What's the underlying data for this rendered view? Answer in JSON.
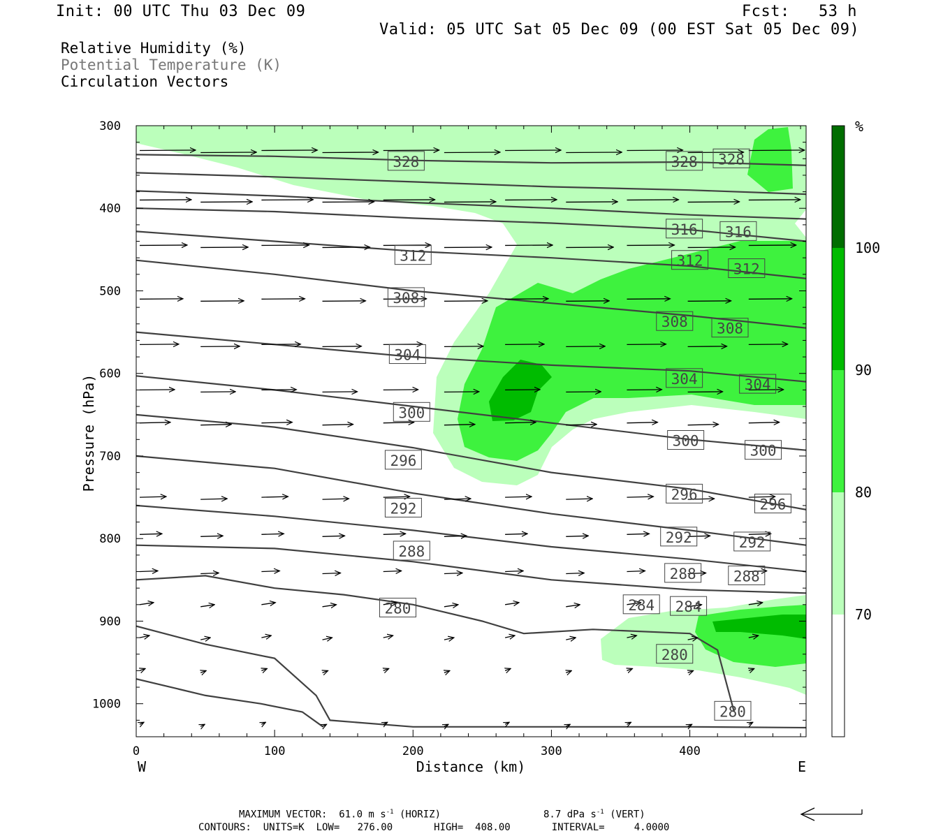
{
  "header": {
    "init": "Init: 00 UTC Thu 03 Dec 09",
    "fcst": "Fcst:   53 h",
    "valid": "Valid: 05 UTC Sat 05 Dec 09 (00 EST Sat 05 Dec 09)"
  },
  "legend": {
    "line1": "Relative Humidity (%)",
    "line2": "Potential Temperature (K)",
    "line3": "Circulation Vectors"
  },
  "colors": {
    "rh_70_80": "#bbffbb",
    "rh_80_90": "#3ef23e",
    "rh_90_100": "#00bb00",
    "rh_100": "#006d00",
    "contour": "#404040"
  },
  "chart_data": {
    "type": "contour-cross-section",
    "ylabel": "Pressure (hPa)",
    "xlabel": "Distance (km)",
    "xlim": [
      0,
      484
    ],
    "ylim": [
      1040,
      300
    ],
    "y_reversed": true,
    "x_ticks": [
      "0",
      "100",
      "200",
      "300",
      "400"
    ],
    "y_ticks": [
      "300",
      "400",
      "500",
      "600",
      "700",
      "800",
      "900",
      "1000"
    ],
    "x_end_labels": {
      "left": "W",
      "right": "E"
    },
    "colorbar": {
      "unit": "%",
      "levels": [
        "70",
        "80",
        "90",
        "100"
      ]
    },
    "rh_shading_levels": [
      70,
      80,
      90,
      100
    ],
    "theta_labels": [
      {
        "value": "328",
        "x": 195,
        "p": 343
      },
      {
        "value": "328",
        "x": 396,
        "p": 343
      },
      {
        "value": "328",
        "x": 430,
        "p": 340
      },
      {
        "value": "316",
        "x": 396,
        "p": 425
      },
      {
        "value": "316",
        "x": 435,
        "p": 428
      },
      {
        "value": "312",
        "x": 200,
        "p": 457
      },
      {
        "value": "312",
        "x": 400,
        "p": 463
      },
      {
        "value": "312",
        "x": 441,
        "p": 473
      },
      {
        "value": "308",
        "x": 195,
        "p": 508
      },
      {
        "value": "308",
        "x": 389,
        "p": 537
      },
      {
        "value": "308",
        "x": 429,
        "p": 545
      },
      {
        "value": "304",
        "x": 196,
        "p": 577
      },
      {
        "value": "304",
        "x": 396,
        "p": 606
      },
      {
        "value": "304",
        "x": 449,
        "p": 613
      },
      {
        "value": "300",
        "x": 199,
        "p": 647
      },
      {
        "value": "300",
        "x": 397,
        "p": 681
      },
      {
        "value": "300",
        "x": 453,
        "p": 693
      },
      {
        "value": "296",
        "x": 193,
        "p": 705
      },
      {
        "value": "296",
        "x": 396,
        "p": 746
      },
      {
        "value": "296",
        "x": 460,
        "p": 758
      },
      {
        "value": "292",
        "x": 193,
        "p": 763
      },
      {
        "value": "292",
        "x": 392,
        "p": 798
      },
      {
        "value": "292",
        "x": 445,
        "p": 804
      },
      {
        "value": "288",
        "x": 199,
        "p": 815
      },
      {
        "value": "288",
        "x": 395,
        "p": 842
      },
      {
        "value": "288",
        "x": 441,
        "p": 845
      },
      {
        "value": "284",
        "x": 365,
        "p": 880
      },
      {
        "value": "284",
        "x": 399,
        "p": 882
      },
      {
        "value": "280",
        "x": 189,
        "p": 884
      },
      {
        "value": "280",
        "x": 389,
        "p": 940
      },
      {
        "value": "280",
        "x": 431,
        "p": 1009
      }
    ],
    "theta_contours": [
      {
        "level": 328,
        "points": [
          [
            0,
            335
          ],
          [
            100,
            337
          ],
          [
            200,
            342
          ],
          [
            300,
            345
          ],
          [
            400,
            344
          ],
          [
            484,
            348
          ]
        ]
      },
      {
        "level": 324,
        "points": [
          [
            0,
            357
          ],
          [
            100,
            362
          ],
          [
            200,
            368
          ],
          [
            300,
            374
          ],
          [
            400,
            378
          ],
          [
            484,
            383
          ]
        ]
      },
      {
        "level": 320,
        "points": [
          [
            0,
            379
          ],
          [
            100,
            385
          ],
          [
            200,
            393
          ],
          [
            300,
            400
          ],
          [
            400,
            408
          ],
          [
            484,
            413
          ]
        ]
      },
      {
        "level": 316,
        "points": [
          [
            0,
            400
          ],
          [
            100,
            404
          ],
          [
            200,
            412
          ],
          [
            300,
            418
          ],
          [
            400,
            426
          ],
          [
            484,
            440
          ]
        ]
      },
      {
        "level": 312,
        "points": [
          [
            0,
            428
          ],
          [
            100,
            440
          ],
          [
            200,
            452
          ],
          [
            300,
            460
          ],
          [
            400,
            470
          ],
          [
            484,
            485
          ]
        ]
      },
      {
        "level": 308,
        "points": [
          [
            0,
            463
          ],
          [
            100,
            480
          ],
          [
            200,
            500
          ],
          [
            300,
            515
          ],
          [
            400,
            530
          ],
          [
            484,
            545
          ]
        ]
      },
      {
        "level": 304,
        "points": [
          [
            0,
            550
          ],
          [
            100,
            565
          ],
          [
            200,
            580
          ],
          [
            300,
            590
          ],
          [
            400,
            597
          ],
          [
            484,
            610
          ]
        ]
      },
      {
        "level": 300,
        "points": [
          [
            0,
            603
          ],
          [
            100,
            620
          ],
          [
            200,
            640
          ],
          [
            300,
            660
          ],
          [
            400,
            680
          ],
          [
            484,
            693
          ]
        ]
      },
      {
        "level": 296,
        "points": [
          [
            0,
            650
          ],
          [
            100,
            665
          ],
          [
            200,
            690
          ],
          [
            300,
            720
          ],
          [
            400,
            740
          ],
          [
            484,
            765
          ]
        ]
      },
      {
        "level": 292,
        "points": [
          [
            0,
            700
          ],
          [
            100,
            715
          ],
          [
            200,
            745
          ],
          [
            300,
            770
          ],
          [
            400,
            790
          ],
          [
            484,
            808
          ]
        ]
      },
      {
        "level": 288,
        "points": [
          [
            0,
            760
          ],
          [
            100,
            773
          ],
          [
            200,
            790
          ],
          [
            300,
            810
          ],
          [
            400,
            825
          ],
          [
            484,
            840
          ]
        ]
      },
      {
        "level": 284,
        "points": [
          [
            0,
            808
          ],
          [
            100,
            812
          ],
          [
            200,
            828
          ],
          [
            300,
            850
          ],
          [
            400,
            862
          ],
          [
            484,
            866
          ]
        ]
      },
      {
        "level": 280,
        "points": [
          [
            0,
            850
          ],
          [
            50,
            845
          ],
          [
            100,
            860
          ],
          [
            150,
            868
          ],
          [
            200,
            880
          ],
          [
            250,
            900
          ],
          [
            280,
            915
          ],
          [
            330,
            910
          ],
          [
            400,
            915
          ],
          [
            420,
            935
          ],
          [
            432,
            1010
          ]
        ]
      },
      {
        "level": 276,
        "points": [
          [
            0,
            906
          ],
          [
            50,
            928
          ],
          [
            100,
            945
          ],
          [
            130,
            990
          ],
          [
            140,
            1020
          ],
          [
            200,
            1028
          ],
          [
            300,
            1028
          ],
          [
            400,
            1028
          ],
          [
            484,
            1029
          ]
        ]
      },
      {
        "level": 272,
        "points": [
          [
            0,
            970
          ],
          [
            50,
            990
          ],
          [
            90,
            1000
          ],
          [
            120,
            1010
          ],
          [
            135,
            1028
          ]
        ]
      }
    ],
    "vector_rows_p": [
      330,
      390,
      445,
      510,
      565,
      620,
      660,
      750,
      795,
      840,
      880,
      920,
      960,
      1025
    ],
    "footer": {
      "max_vector": "MAXIMUM VECTOR:  61.0 m s",
      "horiz": "(HORIZ)",
      "vert": "8.7 dPa s",
      "vert_suffix": "(VERT)",
      "contours": "CONTOURS:  UNITS=K  LOW=   276.00       HIGH=  408.00       INTERVAL=     4.0000"
    }
  }
}
